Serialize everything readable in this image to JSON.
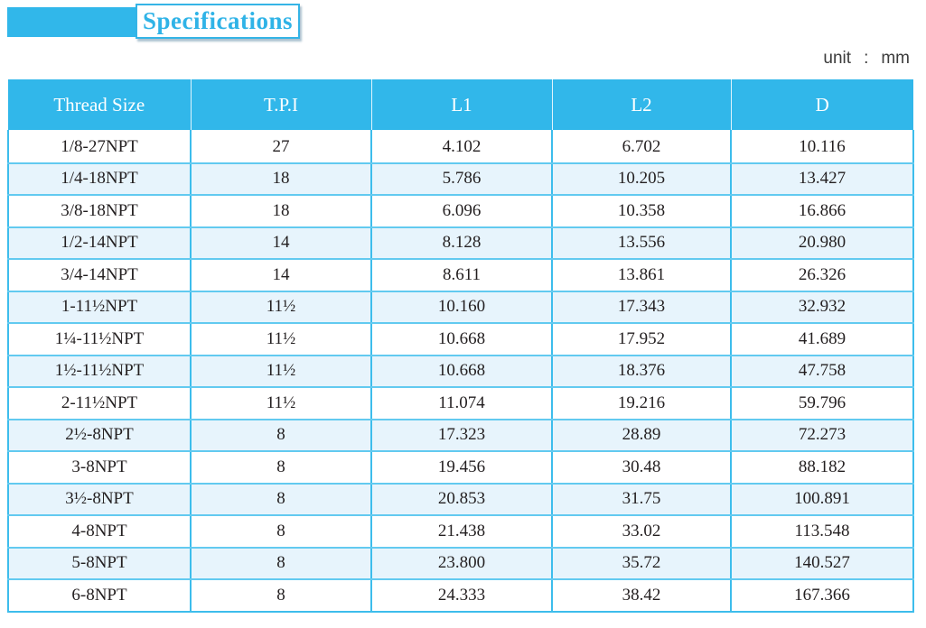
{
  "title": "Specifications",
  "unit": {
    "label": "unit",
    "separator": ":",
    "value": "mm"
  },
  "colors": {
    "accent_cyan": "#31b7ea",
    "title_text": "#2fb3e7",
    "header_bg": "#31b7ea",
    "header_text": "#ffffff",
    "row_alt_bg": "#e7f4fc",
    "border_cyan": "#3dbdec",
    "row_divider": "#62caf0",
    "cell_text": "#231f20"
  },
  "table": {
    "columns": [
      "Thread Size",
      "T.P.I",
      "L1",
      "L2",
      "D"
    ],
    "rows": [
      [
        "1/8-27NPT",
        "27",
        "4.102",
        "6.702",
        "10.116"
      ],
      [
        "1/4-18NPT",
        "18",
        "5.786",
        "10.205",
        "13.427"
      ],
      [
        "3/8-18NPT",
        "18",
        "6.096",
        "10.358",
        "16.866"
      ],
      [
        "1/2-14NPT",
        "14",
        "8.128",
        "13.556",
        "20.980"
      ],
      [
        "3/4-14NPT",
        "14",
        "8.611",
        "13.861",
        "26.326"
      ],
      [
        "1-11½NPT",
        "11½",
        "10.160",
        "17.343",
        "32.932"
      ],
      [
        "1¼-11½NPT",
        "11½",
        "10.668",
        "17.952",
        "41.689"
      ],
      [
        "1½-11½NPT",
        "11½",
        "10.668",
        "18.376",
        "47.758"
      ],
      [
        "2-11½NPT",
        "11½",
        "11.074",
        "19.216",
        "59.796"
      ],
      [
        "2½-8NPT",
        "8",
        "17.323",
        "28.89",
        "72.273"
      ],
      [
        "3-8NPT",
        "8",
        "19.456",
        "30.48",
        "88.182"
      ],
      [
        "3½-8NPT",
        "8",
        "20.853",
        "31.75",
        "100.891"
      ],
      [
        "4-8NPT",
        "8",
        "21.438",
        "33.02",
        "113.548"
      ],
      [
        "5-8NPT",
        "8",
        "23.800",
        "35.72",
        "140.527"
      ],
      [
        "6-8NPT",
        "8",
        "24.333",
        "38.42",
        "167.366"
      ]
    ]
  }
}
